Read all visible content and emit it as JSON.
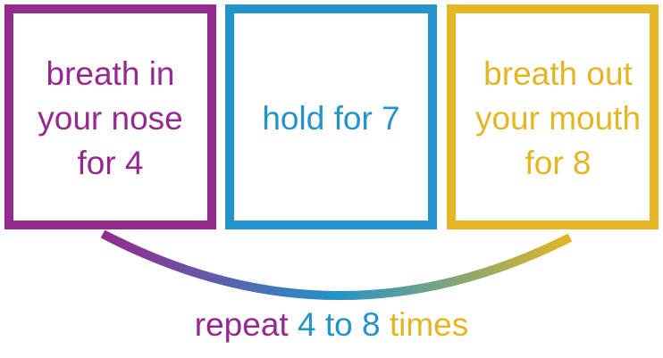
{
  "steps": [
    {
      "text": "breath in\nyour nose\nfor 4",
      "color": "#952a8e"
    },
    {
      "text": "hold for 7",
      "color": "#2493c9"
    },
    {
      "text": "breath out\nyour mouth\nfor 8",
      "color": "#e3b626"
    }
  ],
  "repeat": {
    "prefix": "repeat ",
    "count": "4 to 8",
    "suffix": " times",
    "colors": {
      "prefix": "#952a8e",
      "count": "#2493c9",
      "suffix": "#e3b626"
    }
  }
}
